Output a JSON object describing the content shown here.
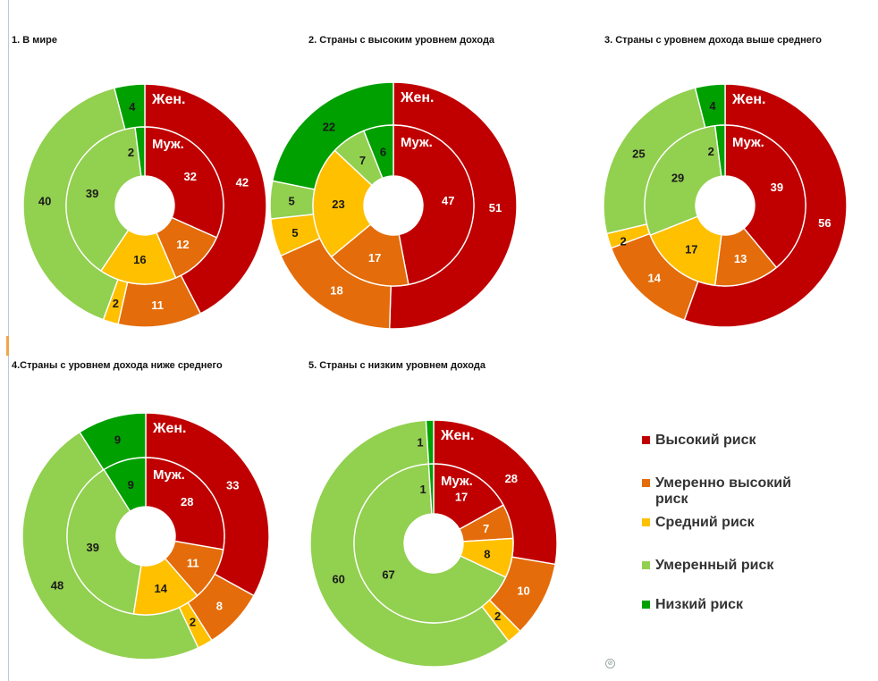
{
  "colors": {
    "high": "#c00000",
    "moderately_high": "#e46c0a",
    "medium": "#ffc000",
    "moderate": "#92d050",
    "low": "#00a000"
  },
  "legend": [
    {
      "label": "Высокий риск",
      "key": "high"
    },
    {
      "label": "Умеренно высокий риск",
      "key": "moderately_high"
    },
    {
      "label": "Средний риск",
      "key": "medium"
    },
    {
      "label": "Умеренный риск",
      "key": "moderate"
    },
    {
      "label": "Низкий риск",
      "key": "low"
    }
  ],
  "ring_labels": {
    "outer": "Жен.",
    "inner": "Муж."
  },
  "chart_data": [
    {
      "type": "pie",
      "title": "1. В мире",
      "categories": [
        "Высокий риск",
        "Умеренно высокий риск",
        "Средний риск",
        "Умеренный риск",
        "Низкий риск"
      ],
      "series": [
        {
          "name": "Жен.",
          "values": [
            42,
            11,
            2,
            40,
            4
          ]
        },
        {
          "name": "Муж.",
          "values": [
            32,
            12,
            16,
            39,
            2
          ]
        }
      ]
    },
    {
      "type": "pie",
      "title": "2. Страны с высоким уровнем дохода",
      "categories": [
        "Высокий риск",
        "Умеренно высокий риск",
        "Средний риск",
        "Умеренный риск",
        "Низкий риск"
      ],
      "series": [
        {
          "name": "Жен.",
          "values": [
            51,
            18,
            5,
            5,
            22
          ]
        },
        {
          "name": "Муж.",
          "values": [
            47,
            17,
            23,
            7,
            6
          ]
        }
      ]
    },
    {
      "type": "pie",
      "title": "3. Страны с уровнем дохода выше среднего",
      "categories": [
        "Высокий риск",
        "Умеренно высокий риск",
        "Средний риск",
        "Умеренный риск",
        "Низкий риск"
      ],
      "series": [
        {
          "name": "Жен.",
          "values": [
            56,
            14,
            2,
            25,
            4
          ]
        },
        {
          "name": "Муж.",
          "values": [
            39,
            13,
            17,
            29,
            2
          ]
        }
      ]
    },
    {
      "type": "pie",
      "title": "4.Страны с уровнем дохода ниже среднего",
      "categories": [
        "Высокий риск",
        "Умеренно высокий риск",
        "Средний риск",
        "Умеренный риск",
        "Низкий риск"
      ],
      "series": [
        {
          "name": "Жен.",
          "values": [
            33,
            8,
            2,
            48,
            9
          ]
        },
        {
          "name": "Муж.",
          "values": [
            28,
            11,
            14,
            39,
            9
          ]
        }
      ]
    },
    {
      "type": "pie",
      "title": "5. Страны с низким уровнем дохода",
      "categories": [
        "Высокий риск",
        "Умеренно высокий риск",
        "Средний риск",
        "Умеренный риск",
        "Низкий риск"
      ],
      "series": [
        {
          "name": "Жен.",
          "values": [
            28,
            10,
            2,
            60,
            1
          ]
        },
        {
          "name": "Муж.",
          "values": [
            17,
            7,
            8,
            67,
            1
          ]
        }
      ]
    }
  ]
}
